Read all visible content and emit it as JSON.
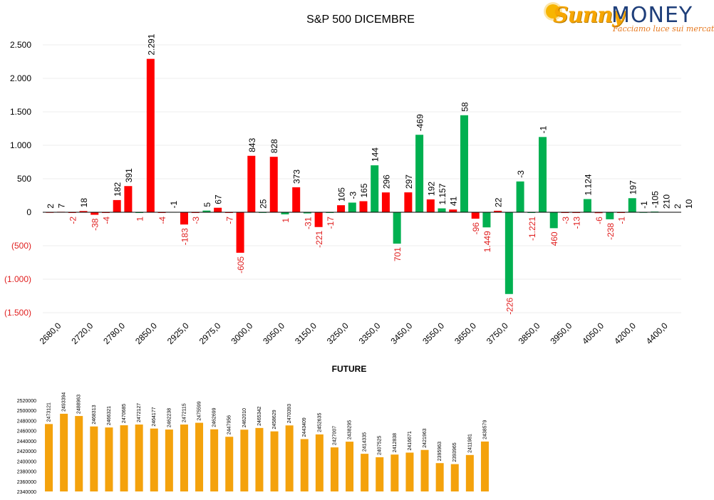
{
  "logo": {
    "brand_sunny": "Sunny",
    "brand_money": "MONEY",
    "tagline": "Facciamo luce sui mercati"
  },
  "colors": {
    "call": "#ff0000",
    "put": "#00b050",
    "future": "#f4a20c",
    "negative_label": "#e02020",
    "axis": "#000000",
    "grid": "#eeeeee"
  },
  "chart_data": [
    {
      "type": "bar",
      "title": "S&P 500 DICEMBRE",
      "ylim": [
        -1500,
        2500
      ],
      "y_ticks": [
        2500,
        2000,
        1500,
        1000,
        500,
        0,
        -500,
        -1000,
        -1500
      ],
      "y_tick_labels": [
        "2.500",
        "2.000",
        "1.500",
        "1.000",
        "500",
        "0",
        "(500)",
        "(1.000)",
        "(1.500)"
      ],
      "x_tick_labels": [
        "2680,0",
        "2720,0",
        "2780,0",
        "2850,0",
        "2925,0",
        "2975,0",
        "3000,0",
        "3050,0",
        "3150,0",
        "3250,0",
        "3350,0",
        "3450,0",
        "3550,0",
        "3650,0",
        "3750,0",
        "3850,0",
        "3950,0",
        "4050,0",
        "4200,0",
        "4400,0"
      ],
      "grid": true,
      "legend": "none",
      "series": [
        {
          "color": "red",
          "values": [
            2,
            7,
            -2,
            18,
            -38,
            -4,
            182,
            391,
            2291,
            -4,
            -183,
            -3,
            67,
            -7,
            -605,
            843,
            828,
            373,
            -221,
            105,
            165,
            296,
            297,
            192,
            41,
            -96,
            22,
            -3,
            -1,
            -13,
            -6,
            -1,
            -1,
            -1
          ]
        },
        {
          "color": "green",
          "values": [
            -1,
            5,
            25,
            1,
            -31,
            -17,
            -3,
            144,
            701,
            -469,
            1157,
            58,
            1449,
            -226,
            -1221,
            460,
            -3,
            1124,
            -238,
            197,
            -105,
            210,
            2,
            10
          ]
        }
      ],
      "data_labels": [
        "2",
        "7",
        "-2",
        "18",
        "-38",
        "-4",
        "182",
        "391",
        "1",
        "2.291",
        "-4",
        "-1",
        "-183",
        "-3",
        "5",
        "67",
        "-7",
        "-605",
        "843",
        "25",
        "828",
        "1",
        "373",
        "-31",
        "-221",
        "-17",
        "105",
        "-3",
        "165",
        "144",
        "296",
        "701",
        "297",
        "-469",
        "192",
        "1.157",
        "41",
        "58",
        "-96",
        "1.449",
        "22",
        "-226",
        "-3",
        "-1.221",
        "-1",
        "460",
        "-3",
        "-13",
        "1.124",
        "-6",
        "-238",
        "-1",
        "197",
        "-1",
        "-105",
        "210",
        "2",
        "10"
      ]
    },
    {
      "type": "bar",
      "title": "FUTURE",
      "ylim": [
        2340000,
        2520000
      ],
      "y_tick_labels": [
        "2520000",
        "2500000",
        "2480000",
        "2460000",
        "2440000",
        "2420000",
        "2400000",
        "2380000",
        "2360000",
        "2340000"
      ],
      "legend": "none",
      "grid": false,
      "values": [
        2473121,
        2493394,
        2488963,
        2468313,
        2466321,
        2470685,
        2472127,
        2464177,
        2462238,
        2472115,
        2475599,
        2462699,
        2447956,
        2462010,
        2465342,
        2458629,
        2470393,
        2443409,
        2452635,
        2427007,
        2438295,
        2414335,
        2407525,
        2412838,
        2416671,
        2421963,
        2395963,
        2393965,
        2411981,
        2438579
      ]
    }
  ]
}
